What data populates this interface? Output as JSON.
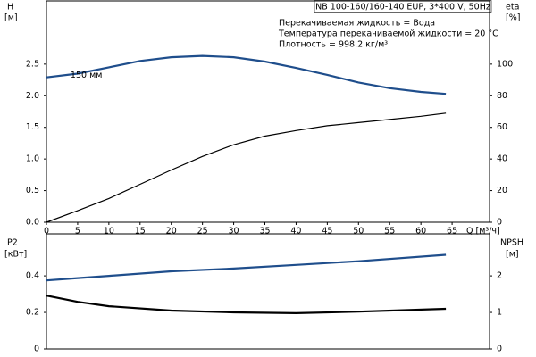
{
  "chart_data": [
    {
      "type": "line",
      "title": "NB 100-160/160-140 EUP, 3*400 V, 50Hz",
      "annotations": [
        "Перекачиваемая жидкость = Вода",
        "Температура перекачиваемой жидкости = 20 °C",
        "Плотность = 998.2 кг/м³"
      ],
      "xlabel": "Q [м³/ч]",
      "ylabel": "H",
      "ylabel_unit": "[м]",
      "y2label": "eta",
      "y2label_unit": "[%]",
      "x": [
        0,
        5,
        10,
        15,
        20,
        25,
        30,
        35,
        40,
        45,
        50,
        55,
        60,
        64
      ],
      "xlim": [
        0,
        71
      ],
      "xticks": [
        0,
        5,
        10,
        15,
        20,
        25,
        30,
        35,
        40,
        45,
        50,
        55,
        60,
        65
      ],
      "ylim": [
        0,
        3.5
      ],
      "yticks": [
        {
          "value": 0,
          "label": "0.0"
        },
        0.5,
        {
          "value": 1,
          "label": "1.0"
        },
        1.5,
        {
          "value": 2,
          "label": "2.0"
        },
        2.5
      ],
      "y2lim": [
        0,
        140
      ],
      "y2ticks": [
        0,
        20,
        40,
        60,
        80,
        100
      ],
      "series": [
        {
          "name": "150 мм",
          "color": "#1f4e8c",
          "values": [
            2.29,
            2.35,
            2.45,
            2.55,
            2.61,
            2.63,
            2.61,
            2.54,
            2.44,
            2.33,
            2.21,
            2.12,
            2.06,
            2.03
          ]
        },
        {
          "color": "#000000",
          "axis": "y2",
          "values": [
            0,
            7.3,
            15,
            24,
            33,
            41.6,
            49,
            54.5,
            58,
            61,
            63,
            65,
            67,
            69
          ]
        }
      ]
    },
    {
      "type": "line",
      "ylabel": "P2",
      "ylabel_unit": "[кВт]",
      "y2label": "NPSH",
      "y2label_unit": "[м]",
      "x": [
        0,
        5,
        10,
        20,
        30,
        40,
        50,
        64
      ],
      "xlim": [
        0,
        71
      ],
      "ylim": [
        0,
        0.63
      ],
      "yticks": [
        0,
        0.2,
        0.4
      ],
      "y2lim": [
        0,
        3.15
      ],
      "y2ticks": [
        0,
        1,
        2
      ],
      "series": [
        {
          "color": "#1f4e8c",
          "values": [
            0.375,
            0.388,
            0.4,
            0.425,
            0.44,
            0.46,
            0.48,
            0.515
          ]
        },
        {
          "color": "#000000",
          "axis": "y2",
          "values": [
            1.46,
            1.29,
            1.17,
            1.05,
            1.0,
            0.98,
            1.02,
            1.1
          ]
        }
      ]
    }
  ]
}
